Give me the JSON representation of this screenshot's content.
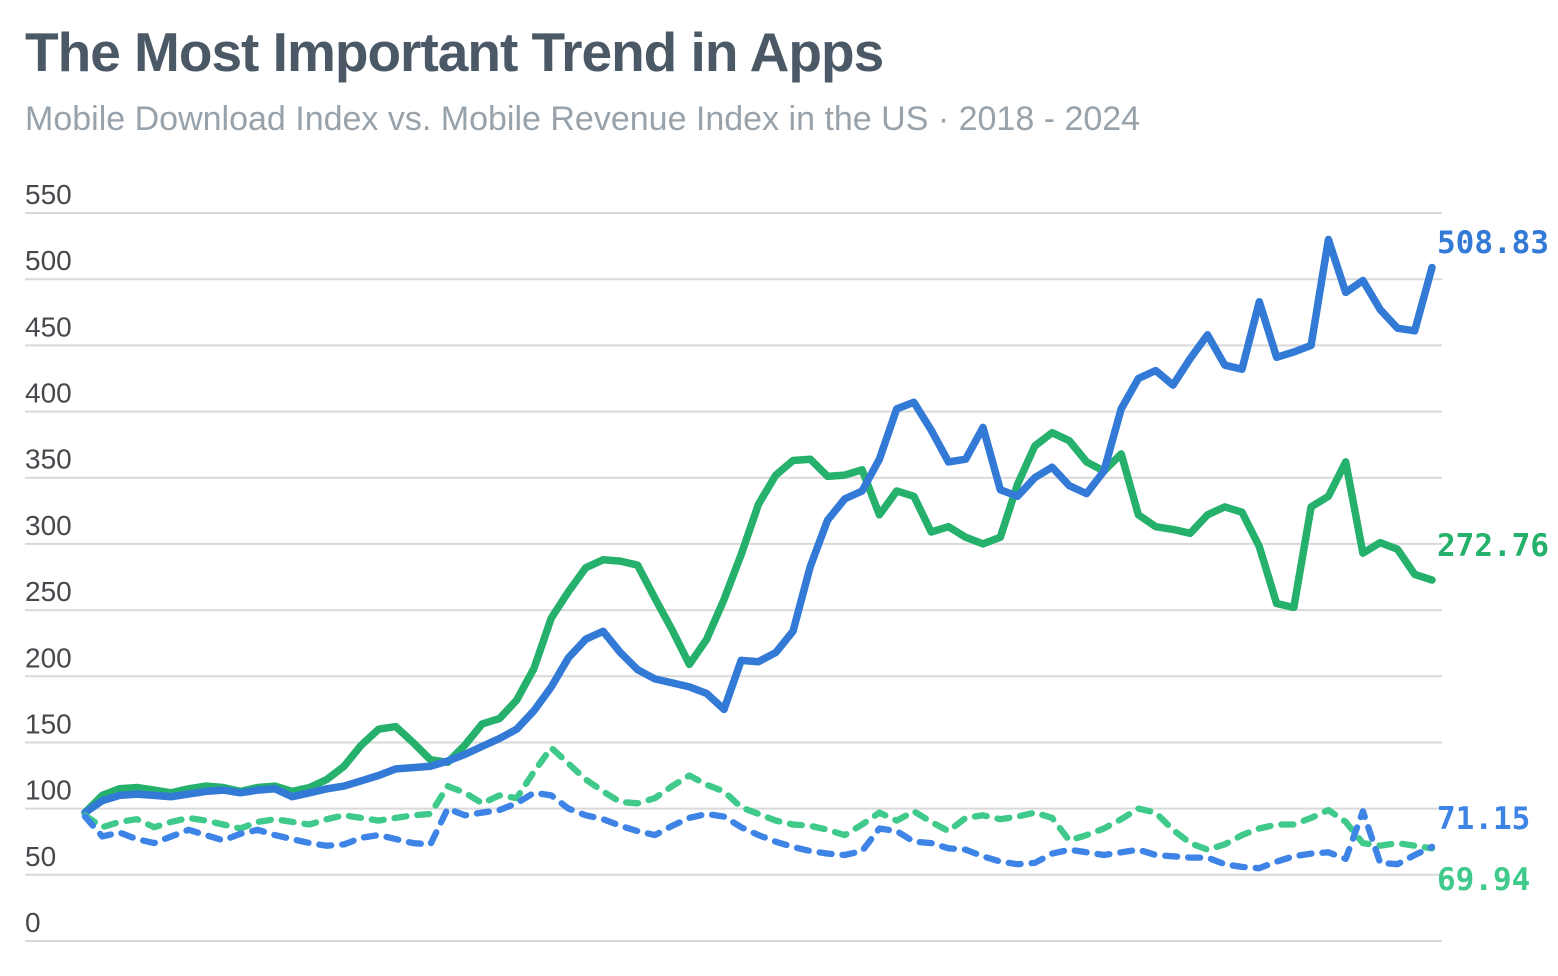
{
  "header": {
    "title": "The Most Important Trend in Apps",
    "subtitle": "Mobile Download Index vs. Mobile Revenue Index in the US · 2018 - 2024"
  },
  "colors": {
    "gridline": "#d9d9d9",
    "title_text": "#4b5866",
    "subtitle_text": "#98a2ab",
    "tick_text": "#45494d"
  },
  "chart_data": {
    "type": "line",
    "title": "The Most Important Trend in Apps",
    "subtitle": "Mobile Download Index vs. Mobile Revenue Index in the US · 2018 - 2024",
    "x_span": "2018 - 2024",
    "x_unit": "month",
    "ylim": [
      0,
      550
    ],
    "grid": true,
    "legend": "none (series identified by end-value labels)",
    "y_ticks": [
      0,
      50,
      100,
      150,
      200,
      250,
      300,
      350,
      400,
      450,
      500,
      550
    ],
    "series": [
      {
        "name": "revenue-index-green-solid",
        "style": "solid",
        "color": "#25b16c",
        "end_label": "272.76",
        "values": [
          97,
          110,
          115,
          116,
          114,
          112,
          115,
          117,
          116,
          113,
          116,
          117,
          113,
          116,
          122,
          132,
          148,
          160,
          162,
          150,
          137,
          135,
          148,
          164,
          168,
          182,
          206,
          244,
          264,
          282,
          288,
          287,
          284,
          259,
          235,
          209,
          228,
          258,
          292,
          330,
          352,
          363,
          364,
          351,
          352,
          356,
          322,
          340,
          336,
          309,
          313,
          305,
          300,
          305,
          345,
          374,
          384,
          378,
          362,
          355,
          368,
          322,
          313,
          311,
          308,
          322,
          328,
          324,
          298,
          255,
          252,
          328,
          336,
          362,
          293,
          301,
          296,
          277,
          272.76
        ]
      },
      {
        "name": "revenue-index-blue-solid",
        "style": "solid",
        "color": "#337ad7",
        "end_label": "508.83",
        "values": [
          97,
          106,
          110,
          111,
          110,
          109,
          111,
          113,
          114,
          112,
          114,
          115,
          109,
          112,
          115,
          117,
          121,
          125,
          130,
          131,
          132,
          136,
          141,
          147,
          153,
          160,
          174,
          192,
          214,
          228,
          234,
          218,
          205,
          198,
          195,
          192,
          187,
          175,
          212,
          211,
          218,
          234,
          283,
          318,
          334,
          340,
          364,
          402,
          407,
          386,
          362,
          364,
          388,
          341,
          336,
          350,
          358,
          344,
          338,
          355,
          402,
          425,
          431,
          420,
          440,
          458,
          435,
          432,
          483,
          441,
          445,
          450,
          530,
          490,
          499,
          477,
          463,
          461,
          508.83
        ]
      },
      {
        "name": "download-index-green-dashed",
        "style": "dashed",
        "color": "#3fc98a",
        "end_label": "69.94",
        "values": [
          95,
          86,
          90,
          92,
          86,
          90,
          93,
          91,
          88,
          85,
          90,
          92,
          90,
          88,
          92,
          95,
          93,
          91,
          93,
          95,
          96,
          117,
          112,
          104,
          110,
          108,
          128,
          146,
          134,
          122,
          113,
          105,
          104,
          108,
          117,
          125,
          118,
          113,
          101,
          96,
          91,
          88,
          87,
          84,
          80,
          88,
          97,
          91,
          98,
          90,
          83,
          93,
          95,
          92,
          94,
          97,
          93,
          76,
          80,
          85,
          92,
          100,
          97,
          84,
          74,
          69,
          73,
          80,
          85,
          88,
          88,
          93,
          99,
          90,
          74,
          72,
          74,
          72,
          69.94
        ]
      },
      {
        "name": "download-index-blue-dashed",
        "style": "dashed",
        "color": "#3d84e6",
        "end_label": "71.15",
        "values": [
          94,
          79,
          82,
          77,
          74,
          79,
          84,
          80,
          76,
          81,
          84,
          80,
          77,
          74,
          72,
          73,
          78,
          80,
          77,
          74,
          73,
          100,
          95,
          97,
          99,
          104,
          112,
          110,
          100,
          95,
          92,
          87,
          83,
          80,
          87,
          93,
          96,
          94,
          86,
          80,
          75,
          71,
          68,
          66,
          65,
          68,
          85,
          83,
          75,
          74,
          70,
          69,
          64,
          60,
          58,
          59,
          66,
          69,
          67,
          65,
          67,
          69,
          65,
          64,
          63,
          63,
          58,
          56,
          55,
          60,
          64,
          66,
          67,
          62,
          98,
          59,
          58,
          65,
          71.15
        ]
      }
    ]
  }
}
